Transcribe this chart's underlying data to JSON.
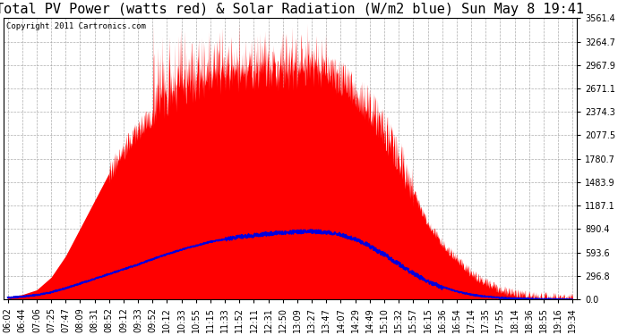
{
  "title": "Total PV Power (watts red) & Solar Radiation (W/m2 blue) Sun May 8 19:41",
  "copyright": "Copyright 2011 Cartronics.com",
  "background_color": "#ffffff",
  "plot_bg_color": "#ffffff",
  "grid_color": "#999999",
  "red_color": "#ff0000",
  "blue_color": "#0000dd",
  "ylim": [
    0.0,
    3561.4
  ],
  "yticks": [
    0.0,
    296.8,
    593.6,
    890.4,
    1187.1,
    1483.9,
    1780.7,
    2077.5,
    2374.3,
    2671.1,
    2967.9,
    3264.7,
    3561.4
  ],
  "xtick_labels": [
    "06:02",
    "06:44",
    "07:06",
    "07:25",
    "07:47",
    "08:09",
    "08:31",
    "08:52",
    "09:12",
    "09:33",
    "09:52",
    "10:12",
    "10:33",
    "10:55",
    "11:15",
    "11:33",
    "11:52",
    "12:11",
    "12:31",
    "12:50",
    "13:09",
    "13:27",
    "13:47",
    "14:07",
    "14:29",
    "14:49",
    "15:10",
    "15:32",
    "15:57",
    "16:15",
    "16:36",
    "16:54",
    "17:14",
    "17:35",
    "17:55",
    "18:14",
    "18:36",
    "18:55",
    "19:16",
    "19:34"
  ],
  "title_fontsize": 11,
  "tick_fontsize": 7.0,
  "copyright_fontsize": 6.5,
  "pv_base_profile": [
    30,
    60,
    120,
    280,
    550,
    900,
    1250,
    1600,
    1900,
    2150,
    2350,
    2500,
    2600,
    2700,
    2750,
    2780,
    2800,
    2820,
    2830,
    2840,
    2850,
    2860,
    2820,
    2750,
    2600,
    2400,
    2100,
    1750,
    1350,
    950,
    700,
    500,
    320,
    200,
    120,
    70,
    35,
    15,
    5,
    0
  ],
  "solar_base_profile": [
    20,
    35,
    55,
    90,
    140,
    200,
    260,
    320,
    380,
    440,
    510,
    570,
    630,
    680,
    730,
    760,
    790,
    810,
    830,
    845,
    855,
    860,
    850,
    820,
    760,
    680,
    580,
    460,
    340,
    240,
    160,
    100,
    60,
    35,
    18,
    10,
    5,
    2,
    1,
    0
  ]
}
